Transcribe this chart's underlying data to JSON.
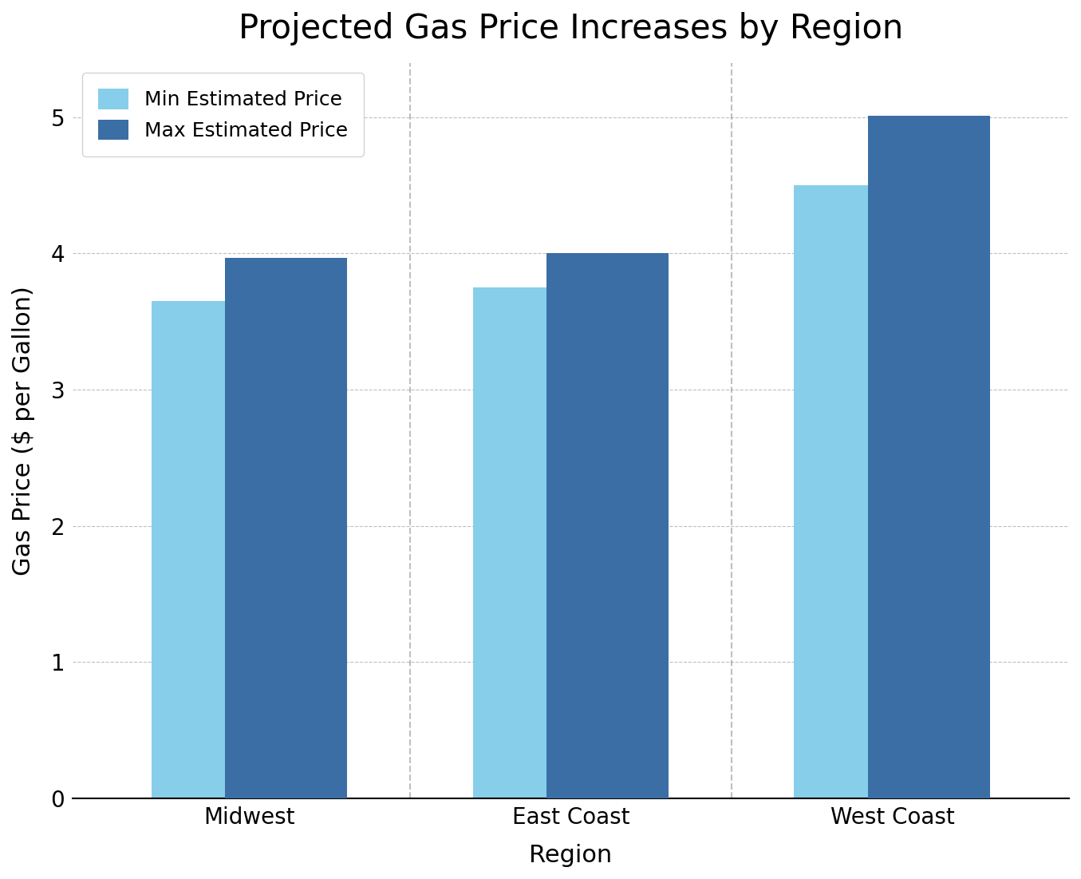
{
  "title": "Projected Gas Price Increases by Region",
  "xlabel": "Region",
  "ylabel": "Gas Price ($ per Gallon)",
  "categories": [
    "Midwest",
    "East Coast",
    "West Coast"
  ],
  "min_values": [
    3.65,
    3.75,
    4.5
  ],
  "max_values": [
    3.97,
    4.0,
    5.01
  ],
  "min_color": "#87CEEB",
  "max_color": "#3A6EA5",
  "ylim": [
    0,
    5.4
  ],
  "yticks": [
    0,
    1,
    2,
    3,
    4,
    5
  ],
  "legend_labels": [
    "Min Estimated Price",
    "Max Estimated Price"
  ],
  "title_fontsize": 30,
  "axis_label_fontsize": 22,
  "tick_fontsize": 20,
  "legend_fontsize": 18,
  "bar_width": 0.38,
  "bar_overlap": 0.15,
  "background_color": "#ffffff"
}
